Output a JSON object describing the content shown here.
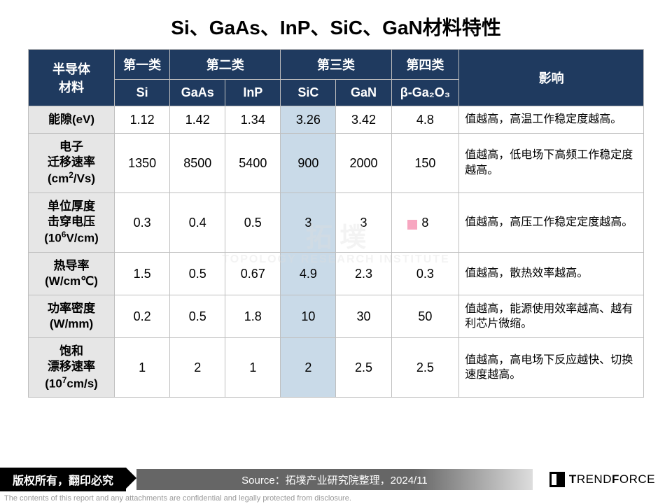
{
  "title": "Si、GaAs、InP、SiC、GaN材料特性",
  "header": {
    "rowlabel": "半导体\n材料",
    "categories": [
      "第一类",
      "第二类",
      "第三类",
      "第四类"
    ],
    "materials": [
      "Si",
      "GaAs",
      "InP",
      "SiC",
      "GaN",
      "β-Ga₂O₃"
    ],
    "impact": "影响"
  },
  "column_widths_pct": [
    14,
    9,
    9,
    9,
    9,
    9,
    11,
    30
  ],
  "highlight_column_index": 3,
  "colors": {
    "header_bg": "#1f3a5f",
    "header_fg": "#ffffff",
    "rowlabel_bg": "#e6e6e6",
    "highlight_bg": "#c9dae8",
    "border": "#bfbfbf",
    "background": "#ffffff"
  },
  "rows": [
    {
      "label_html": "能隙(eV)",
      "values": [
        "1.12",
        "1.42",
        "1.34",
        "3.26",
        "3.42",
        "4.8"
      ],
      "impact": "值越高，高温工作稳定度越高。"
    },
    {
      "label_html": "电子<br>迁移速率<br>(cm<span class='sup'>2</span>/Vs)",
      "values": [
        "1350",
        "8500",
        "5400",
        "900",
        "2000",
        "150"
      ],
      "impact": "值越高，低电场下高频工作稳定度越高。"
    },
    {
      "label_html": "单位厚度<br>击穿电压<br>(10<span class='sup'>6</span>V/cm)",
      "values": [
        "0.3",
        "0.4",
        "0.5",
        "3",
        "3",
        "8"
      ],
      "impact": "值越高，高压工作稳定定度越高。"
    },
    {
      "label_html": "热导率<br>(W/cm℃)",
      "values": [
        "1.5",
        "0.5",
        "0.67",
        "4.9",
        "2.3",
        "0.3"
      ],
      "impact": "值越高，散热效率越高。"
    },
    {
      "label_html": "功率密度<br>(W/mm)",
      "values": [
        "0.2",
        "0.5",
        "1.8",
        "10",
        "30",
        "50"
      ],
      "impact": "值越高，能源使用效率越高、越有利芯片微缩。"
    },
    {
      "label_html": "饱和<br>漂移速率<br>(10<span class='sup'>7</span>cm/s)",
      "values": [
        "1",
        "2",
        "1",
        "2",
        "2.5",
        "2.5"
      ],
      "impact": "值越高，高电场下反应越快、切换速度越高。"
    }
  ],
  "footer": {
    "copyright": "版权所有，翻印必究",
    "source": "Source：拓墣产业研究院整理，2024/11",
    "brand": "TRENDFORCE"
  },
  "watermark": {
    "cn": "拓 墣",
    "en": "TOPOLOGY RESEARCH INSTITUTE"
  },
  "disclaimer": "The contents of this report and any attachments are confidential and legally protected from disclosure."
}
